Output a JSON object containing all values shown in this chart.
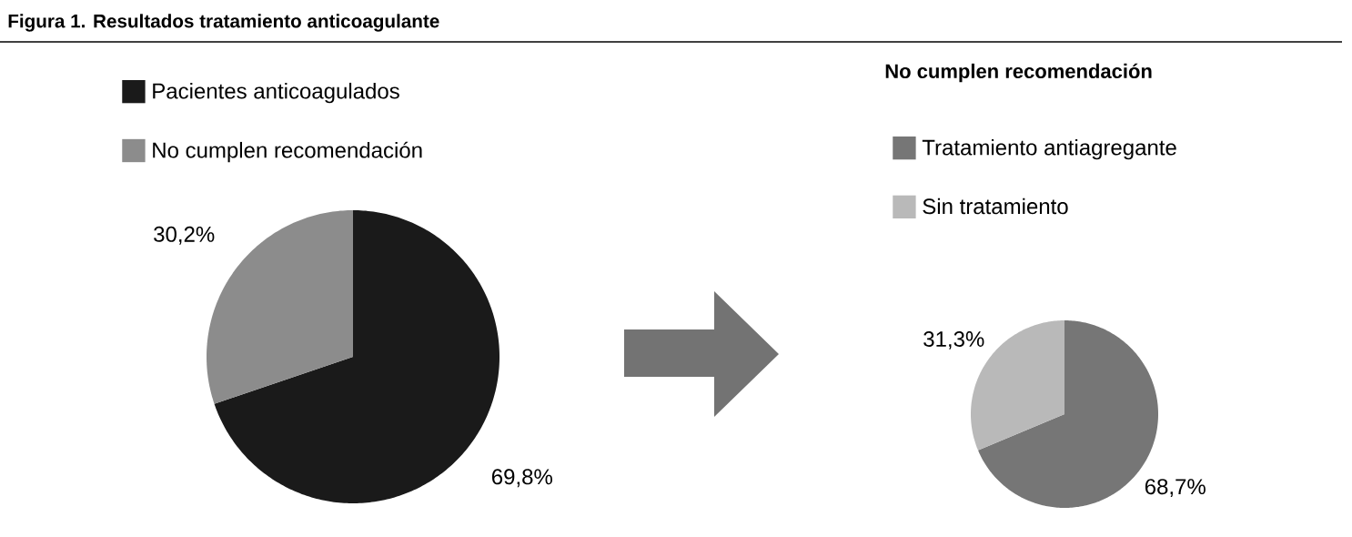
{
  "chart_data": [
    {
      "type": "pie",
      "title": "Figura 1. Resultados tratamiento anticoagulante",
      "categories": [
        "Pacientes anticoagulados",
        "No cumplen recomendación"
      ],
      "values": [
        69.8,
        30.2
      ],
      "colors": [
        "#1a1a1a",
        "#8c8c8c"
      ],
      "value_labels": [
        "69,8%",
        "30,2%"
      ],
      "legend": "top left"
    },
    {
      "type": "pie",
      "title": "No cumplen recomendación",
      "categories": [
        "Tratamiento antiagregante",
        "Sin tratamiento"
      ],
      "values": [
        68.7,
        31.3
      ],
      "colors": [
        "#767676",
        "#b9b9b9"
      ],
      "value_labels": [
        "68,7%",
        "31,3%"
      ],
      "legend": "top left"
    }
  ]
}
